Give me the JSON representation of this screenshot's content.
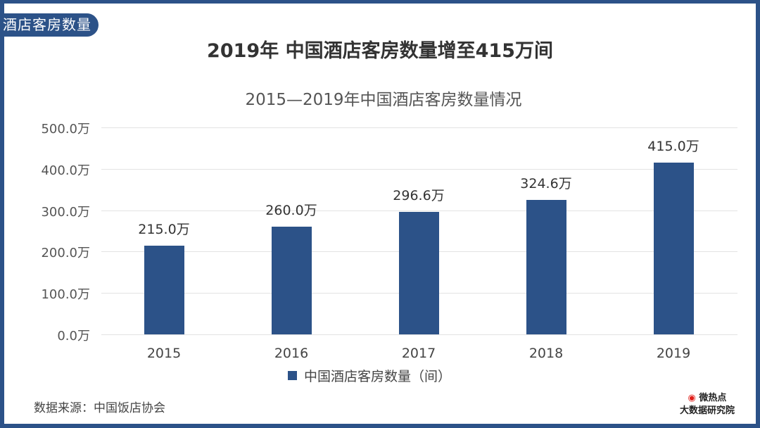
{
  "tag": "酒店客房数量",
  "title": "2019年 中国酒店客房数量增至415万间",
  "footer": {
    "source": "数据来源：中国饭店协会",
    "logo_line1": "微热点",
    "logo_line2": "大数据研究院"
  },
  "chart_data": {
    "type": "bar",
    "title": "2015—2019年中国酒店客房数量情况",
    "categories": [
      "2015",
      "2016",
      "2017",
      "2018",
      "2019"
    ],
    "series": [
      {
        "name": "中国酒店客房数量（间）",
        "values": [
          215.0,
          260.0,
          296.6,
          324.6,
          415.0
        ],
        "color": "#2c5288"
      }
    ],
    "value_labels": [
      "215.0万",
      "260.0万",
      "296.6万",
      "324.6万",
      "415.0万"
    ],
    "ylim": [
      0,
      500
    ],
    "yticks": [
      "0.0万",
      "100.0万",
      "200.0万",
      "300.0万",
      "400.0万",
      "500.0万"
    ],
    "xlabel": "",
    "ylabel": "",
    "grid": true,
    "legend_position": "bottom"
  }
}
